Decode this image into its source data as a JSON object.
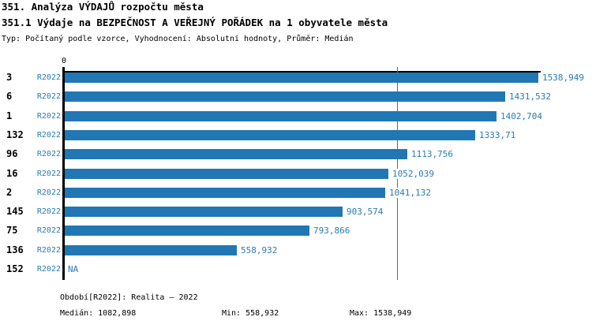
{
  "header": {
    "title": "351. Analýza VÝDAJŮ rozpočtu města",
    "subtitle": "351.1 Výdaje na BEZPEČNOST A VEŘEJNÝ POŘÁDEK na 1 obyvatele města",
    "meta": "Typ: Počítaný podle vzorce, Vyhodnocení: Absolutní hodnoty, Průměr: Medián"
  },
  "chart_data": {
    "type": "bar",
    "orientation": "horizontal",
    "zero_tick_label": "0",
    "categories": [
      "3",
      "6",
      "1",
      "132",
      "96",
      "16",
      "2",
      "145",
      "75",
      "136",
      "152"
    ],
    "series": [
      {
        "name": "R2022",
        "values": [
          1538.949,
          1431.532,
          1402.704,
          1333.71,
          1113.756,
          1052.039,
          1041.132,
          903.574,
          793.866,
          558.932,
          null
        ],
        "value_labels": [
          "1538,949",
          "1431,532",
          "1402,704",
          "1333,71",
          "1113,756",
          "1052,039",
          "1041,132",
          "903,574",
          "793,866",
          "558,932",
          "NA"
        ]
      }
    ],
    "median": {
      "value": 1082.898,
      "label": "1082,898"
    },
    "xlim": [
      0,
      1538.949
    ],
    "grid": false,
    "legend": "none",
    "colors": {
      "bar": "#2177b4",
      "text": "#2b7bb4",
      "median_line": "#2b7bb4",
      "axis": "#000000"
    }
  },
  "footer": {
    "period": "Období[R2022]: Realita – 2022",
    "median": "Medián: 1082,898",
    "min": "Min: 558,932",
    "max": "Max: 1538,949"
  }
}
